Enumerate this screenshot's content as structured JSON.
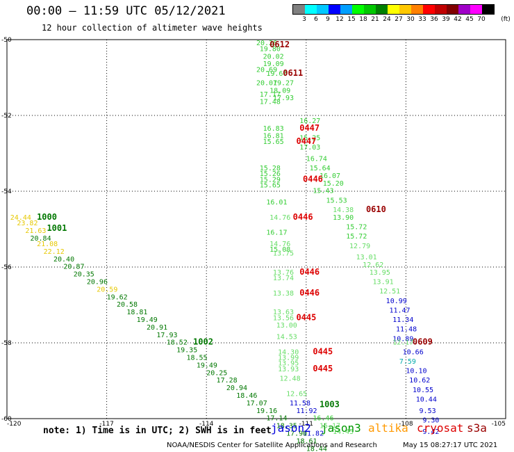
{
  "header": {
    "title": "00:00 — 11:59 UTC 05/12/2021",
    "subtitle": "12 hour collection of altimeter wave heights"
  },
  "legend": {
    "colors": [
      "#808080",
      "#00ffff",
      "#00c8ff",
      "#0000ff",
      "#009fff",
      "#00ff00",
      "#00c800",
      "#008000",
      "#ffff00",
      "#ffc800",
      "#ff8000",
      "#ff0000",
      "#c00000",
      "#800000",
      "#a000c8",
      "#ff00ff",
      "#000000"
    ],
    "labels": [
      "3",
      "6",
      "9",
      "12",
      "15",
      "18",
      "21",
      "24",
      "27",
      "30",
      "33",
      "36",
      "39",
      "42",
      "45",
      "70"
    ],
    "unit": "(ft)"
  },
  "chart_data": {
    "type": "scatter",
    "title": "12 hour collection of altimeter wave heights",
    "xlim": [
      -120,
      -105
    ],
    "ylim": [
      -60,
      -50
    ],
    "x_ticks": [
      "-120",
      "-117",
      "-114",
      "-111",
      "-108",
      "-105"
    ],
    "y_ticks": [
      "-50",
      "-52",
      "-54",
      "-56",
      "-58",
      "-60"
    ],
    "grid": true,
    "points": [
      {
        "x": -112.5,
        "y": -50.15,
        "label": "20.26",
        "color": "#33cc33"
      },
      {
        "x": -112.1,
        "y": -50.2,
        "label": "0612",
        "color": "#990000"
      },
      {
        "x": -112.4,
        "y": -50.3,
        "label": "19.80",
        "color": "#33cc33"
      },
      {
        "x": -112.3,
        "y": -50.5,
        "label": "20.02",
        "color": "#33cc33"
      },
      {
        "x": -112.3,
        "y": -50.7,
        "label": "19.09",
        "color": "#33cc33"
      },
      {
        "x": -112.5,
        "y": -50.85,
        "label": "20.69",
        "color": "#33cc33"
      },
      {
        "x": -112.2,
        "y": -50.95,
        "label": "19.60",
        "color": "#33cc33"
      },
      {
        "x": -111.7,
        "y": -50.95,
        "label": "0611",
        "color": "#990000"
      },
      {
        "x": -112.5,
        "y": -51.2,
        "label": "20.07",
        "color": "#33cc33"
      },
      {
        "x": -112.0,
        "y": -51.2,
        "label": "19.27",
        "color": "#33cc33"
      },
      {
        "x": -112.1,
        "y": -51.4,
        "label": "18.09",
        "color": "#33cc33"
      },
      {
        "x": -112.4,
        "y": -51.5,
        "label": "17.17",
        "color": "#33cc33"
      },
      {
        "x": -112.0,
        "y": -51.6,
        "label": "17.93",
        "color": "#33cc33"
      },
      {
        "x": -112.4,
        "y": -51.7,
        "label": "17.48",
        "color": "#33cc33"
      },
      {
        "x": -111.2,
        "y": -52.2,
        "label": "16.27",
        "color": "#33cc33"
      },
      {
        "x": -112.3,
        "y": -52.4,
        "label": "16.83",
        "color": "#33cc33"
      },
      {
        "x": -111.2,
        "y": -52.4,
        "label": "0447",
        "color": "#dd0000"
      },
      {
        "x": -112.3,
        "y": -52.6,
        "label": "16.81",
        "color": "#33cc33"
      },
      {
        "x": -111.2,
        "y": -52.65,
        "label": "15.25",
        "color": "#33cc33"
      },
      {
        "x": -112.3,
        "y": -52.75,
        "label": "15.65",
        "color": "#33cc33"
      },
      {
        "x": -111.3,
        "y": -52.75,
        "label": "0447",
        "color": "#dd0000"
      },
      {
        "x": -111.2,
        "y": -52.9,
        "label": "17.03",
        "color": "#33cc33"
      },
      {
        "x": -111.0,
        "y": -53.2,
        "label": "16.74",
        "color": "#33cc33"
      },
      {
        "x": -112.4,
        "y": -53.45,
        "label": "15.28",
        "color": "#33cc33"
      },
      {
        "x": -110.9,
        "y": -53.45,
        "label": "15.64",
        "color": "#33cc33"
      },
      {
        "x": -112.4,
        "y": -53.6,
        "label": "15.26",
        "color": "#33cc33"
      },
      {
        "x": -110.6,
        "y": -53.65,
        "label": "16.07",
        "color": "#33cc33"
      },
      {
        "x": -112.4,
        "y": -53.75,
        "label": "15.29",
        "color": "#33cc33"
      },
      {
        "x": -111.1,
        "y": -53.75,
        "label": "0446",
        "color": "#dd0000"
      },
      {
        "x": -110.5,
        "y": -53.85,
        "label": "15.20",
        "color": "#33cc33"
      },
      {
        "x": -112.4,
        "y": -53.9,
        "label": "15.65",
        "color": "#33cc33"
      },
      {
        "x": -110.8,
        "y": -54.05,
        "label": "15.43",
        "color": "#33cc33"
      },
      {
        "x": -110.4,
        "y": -54.3,
        "label": "15.53",
        "color": "#33cc33"
      },
      {
        "x": -112.2,
        "y": -54.35,
        "label": "16.01",
        "color": "#33cc33"
      },
      {
        "x": -110.2,
        "y": -54.55,
        "label": "14.38",
        "color": "#66dd66"
      },
      {
        "x": -109.2,
        "y": -54.55,
        "label": "0610",
        "color": "#990000"
      },
      {
        "x": -112.1,
        "y": -54.75,
        "label": "14.76",
        "color": "#66dd66"
      },
      {
        "x": -111.4,
        "y": -54.75,
        "label": "0446",
        "color": "#dd0000"
      },
      {
        "x": -110.2,
        "y": -54.75,
        "label": "13.90",
        "color": "#33cc33"
      },
      {
        "x": -109.8,
        "y": -55.0,
        "label": "15.72",
        "color": "#33cc33"
      },
      {
        "x": -112.2,
        "y": -55.15,
        "label": "16.17",
        "color": "#33cc33"
      },
      {
        "x": -109.8,
        "y": -55.25,
        "label": "15.72",
        "color": "#33cc33"
      },
      {
        "x": -112.1,
        "y": -55.45,
        "label": "14.76",
        "color": "#66dd66"
      },
      {
        "x": -109.7,
        "y": -55.5,
        "label": "12.79",
        "color": "#66dd66"
      },
      {
        "x": -112.1,
        "y": -55.6,
        "label": "15.08",
        "color": "#33cc33"
      },
      {
        "x": -112.0,
        "y": -55.7,
        "label": "13.75",
        "color": "#66dd66"
      },
      {
        "x": -109.5,
        "y": -55.8,
        "label": "13.01",
        "color": "#66dd66"
      },
      {
        "x": -109.3,
        "y": -56.0,
        "label": "12.62",
        "color": "#66dd66"
      },
      {
        "x": -112.0,
        "y": -56.2,
        "label": "13.76",
        "color": "#66dd66"
      },
      {
        "x": -111.2,
        "y": -56.2,
        "label": "0446",
        "color": "#dd0000"
      },
      {
        "x": -109.1,
        "y": -56.2,
        "label": "13.95",
        "color": "#66dd66"
      },
      {
        "x": -112.0,
        "y": -56.35,
        "label": "13.74",
        "color": "#66dd66"
      },
      {
        "x": -109.0,
        "y": -56.45,
        "label": "13.91",
        "color": "#66dd66"
      },
      {
        "x": -108.8,
        "y": -56.7,
        "label": "12.51",
        "color": "#66dd66"
      },
      {
        "x": -112.0,
        "y": -56.75,
        "label": "13.38",
        "color": "#66dd66"
      },
      {
        "x": -111.2,
        "y": -56.75,
        "label": "0446",
        "color": "#dd0000"
      },
      {
        "x": -108.6,
        "y": -56.95,
        "label": "10.99",
        "color": "#0000cc"
      },
      {
        "x": -108.5,
        "y": -57.2,
        "label": "11.47",
        "color": "#0000cc"
      },
      {
        "x": -112.0,
        "y": -57.25,
        "label": "13.63",
        "color": "#66dd66"
      },
      {
        "x": -112.0,
        "y": -57.4,
        "label": "13.56",
        "color": "#66dd66"
      },
      {
        "x": -111.3,
        "y": -57.4,
        "label": "0445",
        "color": "#dd0000"
      },
      {
        "x": -108.4,
        "y": -57.45,
        "label": "11.34",
        "color": "#0000cc"
      },
      {
        "x": -111.9,
        "y": -57.6,
        "label": "13.00",
        "color": "#66dd66"
      },
      {
        "x": -108.3,
        "y": -57.7,
        "label": "11.48",
        "color": "#0000cc"
      },
      {
        "x": -108.4,
        "y": -57.95,
        "label": "10.89",
        "color": "#0000cc"
      },
      {
        "x": -111.9,
        "y": -57.9,
        "label": "14.53",
        "color": "#66dd66"
      },
      {
        "x": -108.4,
        "y": -58.05,
        "label": "12.17",
        "color": "#66dd66"
      },
      {
        "x": -107.8,
        "y": -58.05,
        "label": "0609",
        "color": "#990000"
      },
      {
        "x": -108.1,
        "y": -58.3,
        "label": "10.66",
        "color": "#0000cc"
      },
      {
        "x": -111.85,
        "y": -58.3,
        "label": "14.30",
        "color": "#66dd66"
      },
      {
        "x": -110.8,
        "y": -58.3,
        "label": "0445",
        "color": "#dd0000"
      },
      {
        "x": -111.85,
        "y": -58.45,
        "label": "13.99",
        "color": "#66dd66"
      },
      {
        "x": -108.2,
        "y": -58.55,
        "label": "7.59",
        "color": "#00aaaa"
      },
      {
        "x": -111.85,
        "y": -58.6,
        "label": "13.95",
        "color": "#66dd66"
      },
      {
        "x": -111.85,
        "y": -58.75,
        "label": "13.93",
        "color": "#66dd66"
      },
      {
        "x": -110.8,
        "y": -58.75,
        "label": "0445",
        "color": "#dd0000"
      },
      {
        "x": -108.0,
        "y": -58.8,
        "label": "10.10",
        "color": "#0000cc"
      },
      {
        "x": -111.8,
        "y": -59.0,
        "label": "12.48",
        "color": "#66dd66"
      },
      {
        "x": -107.9,
        "y": -59.05,
        "label": "10.62",
        "color": "#0000cc"
      },
      {
        "x": -107.8,
        "y": -59.3,
        "label": "10.55",
        "color": "#0000cc"
      },
      {
        "x": -111.6,
        "y": -59.4,
        "label": "12.65",
        "color": "#66dd66"
      },
      {
        "x": -107.7,
        "y": -59.55,
        "label": "10.44",
        "color": "#0000cc"
      },
      {
        "x": -111.5,
        "y": -59.65,
        "label": "11.58",
        "color": "#0000cc"
      },
      {
        "x": -110.6,
        "y": -59.7,
        "label": "1003",
        "color": "#007700"
      },
      {
        "x": -111.3,
        "y": -59.85,
        "label": "11.92",
        "color": "#0000cc"
      },
      {
        "x": -107.6,
        "y": -59.85,
        "label": "9.53",
        "color": "#0000cc"
      },
      {
        "x": -110.8,
        "y": -60.05,
        "label": "16.46",
        "color": "#33cc33"
      },
      {
        "x": -107.5,
        "y": -60.1,
        "label": "9.30",
        "color": "#0000cc"
      },
      {
        "x": -110.6,
        "y": -60.25,
        "label": "15.17",
        "color": "#66dd66"
      },
      {
        "x": -111.1,
        "y": -60.45,
        "label": "11.82",
        "color": "#0000cc"
      },
      {
        "x": -110.2,
        "y": -60.4,
        "label": "14.45",
        "color": "#66dd66"
      },
      {
        "x": -107.5,
        "y": -60.4,
        "label": "9.42",
        "color": "#0000cc"
      },
      {
        "x": -119.9,
        "y": -54.75,
        "label": "24.44",
        "color": "#e6c800"
      },
      {
        "x": -119.1,
        "y": -54.75,
        "label": "1000",
        "color": "#007700"
      },
      {
        "x": -119.7,
        "y": -54.9,
        "label": "23.82",
        "color": "#e6c800"
      },
      {
        "x": -119.45,
        "y": -55.1,
        "label": "21.63",
        "color": "#e6c800"
      },
      {
        "x": -118.8,
        "y": -55.05,
        "label": "1001",
        "color": "#007700"
      },
      {
        "x": -119.3,
        "y": -55.3,
        "label": "20.84",
        "color": "#007700"
      },
      {
        "x": -119.1,
        "y": -55.45,
        "label": "21.08",
        "color": "#e6c800"
      },
      {
        "x": -118.9,
        "y": -55.65,
        "label": "22.12",
        "color": "#e6c800"
      },
      {
        "x": -118.6,
        "y": -55.85,
        "label": "20.40",
        "color": "#007700"
      },
      {
        "x": -118.3,
        "y": -56.05,
        "label": "20.87",
        "color": "#007700"
      },
      {
        "x": -118.0,
        "y": -56.25,
        "label": "20.35",
        "color": "#007700"
      },
      {
        "x": -117.6,
        "y": -56.45,
        "label": "20.96",
        "color": "#007700"
      },
      {
        "x": -117.3,
        "y": -56.65,
        "label": "20.59",
        "color": "#e6c800"
      },
      {
        "x": -117.0,
        "y": -56.85,
        "label": "19.62",
        "color": "#007700"
      },
      {
        "x": -116.7,
        "y": -57.05,
        "label": "20.58",
        "color": "#007700"
      },
      {
        "x": -116.4,
        "y": -57.25,
        "label": "18.81",
        "color": "#007700"
      },
      {
        "x": -116.1,
        "y": -57.45,
        "label": "19.49",
        "color": "#007700"
      },
      {
        "x": -115.8,
        "y": -57.65,
        "label": "20.91",
        "color": "#007700"
      },
      {
        "x": -115.5,
        "y": -57.85,
        "label": "17.93",
        "color": "#007700"
      },
      {
        "x": -115.2,
        "y": -58.05,
        "label": "18.52",
        "color": "#007700"
      },
      {
        "x": -114.4,
        "y": -58.05,
        "label": "1002",
        "color": "#007700"
      },
      {
        "x": -114.9,
        "y": -58.25,
        "label": "19.35",
        "color": "#007700"
      },
      {
        "x": -114.6,
        "y": -58.45,
        "label": "18.55",
        "color": "#007700"
      },
      {
        "x": -114.3,
        "y": -58.65,
        "label": "19.49",
        "color": "#007700"
      },
      {
        "x": -114.0,
        "y": -58.85,
        "label": "20.25",
        "color": "#007700"
      },
      {
        "x": -113.7,
        "y": -59.05,
        "label": "17.28",
        "color": "#007700"
      },
      {
        "x": -113.4,
        "y": -59.25,
        "label": "20.94",
        "color": "#007700"
      },
      {
        "x": -113.1,
        "y": -59.45,
        "label": "18.46",
        "color": "#007700"
      },
      {
        "x": -112.8,
        "y": -59.65,
        "label": "17.07",
        "color": "#007700"
      },
      {
        "x": -112.5,
        "y": -59.85,
        "label": "19.16",
        "color": "#007700"
      },
      {
        "x": -112.2,
        "y": -60.05,
        "label": "17.14",
        "color": "#007700"
      },
      {
        "x": -111.9,
        "y": -60.25,
        "label": "18.35",
        "color": "#007700"
      },
      {
        "x": -111.6,
        "y": -60.45,
        "label": "17.90",
        "color": "#007700"
      },
      {
        "x": -111.3,
        "y": -60.65,
        "label": "18.61",
        "color": "#007700"
      },
      {
        "x": -111.0,
        "y": -60.85,
        "label": "18.44",
        "color": "#007700"
      }
    ]
  },
  "note": "note: 1) Time is in UTC; 2) SWH is in feet",
  "satellites": [
    {
      "name": "jason2",
      "color": "#0000dd"
    },
    {
      "name": "jason3",
      "color": "#009900"
    },
    {
      "name": "altika",
      "color": "#ff9900"
    },
    {
      "name": "cryosat",
      "color": "#dd0000"
    },
    {
      "name": "s3a",
      "color": "#990000"
    }
  ],
  "footer": {
    "credit": "NOAA/NESDIS Center for Satellite Applications and Research",
    "timestamp": "May 15 08:27:17 UTC 2021"
  }
}
